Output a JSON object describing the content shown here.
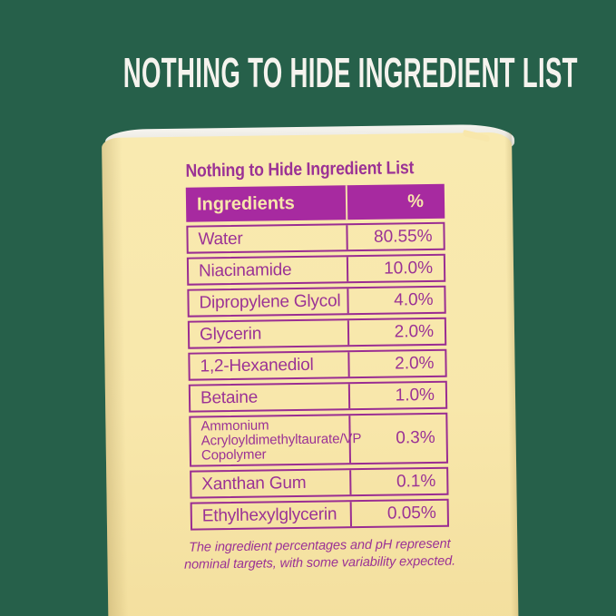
{
  "header": {
    "title": "NOTHING TO HIDE INGREDIENT LIST"
  },
  "panel": {
    "title": "Nothing to Hide Ingredient List",
    "table": {
      "header": {
        "ingredient": "Ingredients",
        "percent": "%"
      },
      "rows": [
        {
          "name": "Water",
          "pct": "80.55%"
        },
        {
          "name": "Niacinamide",
          "pct": "10.0%"
        },
        {
          "name": "Dipropylene Glycol",
          "pct": "4.0%"
        },
        {
          "name": "Glycerin",
          "pct": "2.0%"
        },
        {
          "name": "1,2-Hexanediol",
          "pct": "2.0%"
        },
        {
          "name": "Betaine",
          "pct": "1.0%"
        },
        {
          "name": "Ammonium Acryloyldimethyltaurate/VP Copolymer",
          "pct": "0.3%"
        },
        {
          "name": "Xanthan Gum",
          "pct": "0.1%"
        },
        {
          "name": "Ethylhexylglycerin",
          "pct": "0.05%"
        }
      ]
    },
    "footnote": "The ingredient percentages and pH represent\nnominal targets, with some variability expected."
  },
  "colors": {
    "background_green": "#26604a",
    "box_cream": "#f8e7ab",
    "accent_purple_fill": "#a72aa0",
    "table_purple": "#9b3295",
    "headline_white": "#f5f3ee",
    "lid_white": "#edebe5"
  }
}
